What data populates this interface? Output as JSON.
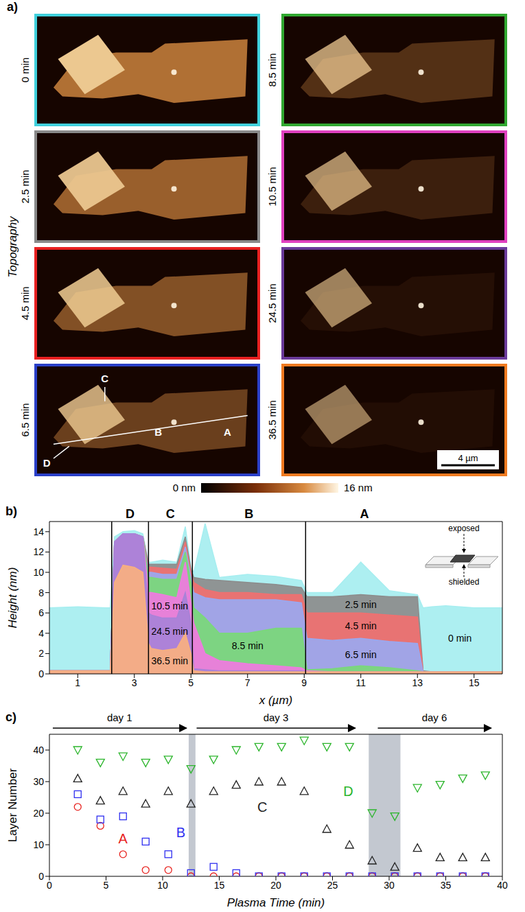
{
  "panel_a": {
    "label": "a)",
    "row_title": "Topography",
    "frames": [
      {
        "time": "0 min",
        "color": "#3fd0dc"
      },
      {
        "time": "2.5 min",
        "color": "#8a8a8a"
      },
      {
        "time": "4.5 min",
        "color": "#e82020"
      },
      {
        "time": "6.5 min",
        "color": "#2a3fc8",
        "markers": [
          "C",
          "D",
          "B",
          "A"
        ]
      },
      {
        "time": "8.5 min",
        "color": "#30a830"
      },
      {
        "time": "10.5 min",
        "color": "#e040c0"
      },
      {
        "time": "24.5 min",
        "color": "#6a3a9a"
      },
      {
        "time": "36.5 min",
        "color": "#f07a20",
        "scale_bar": "4 µm"
      }
    ],
    "colorbar": {
      "ticks": [
        {
          "value": 0,
          "label": "0 nm"
        },
        {
          "value": 16,
          "label": "16 nm"
        }
      ]
    }
  },
  "chart_data": [
    {
      "type": "area",
      "label": "b)",
      "x_label": "x (µm)",
      "y_label": "Height (nm)",
      "xlim": [
        0,
        16
      ],
      "xticks": [
        1,
        3,
        5,
        7,
        9,
        11,
        13,
        15
      ],
      "ylim": [
        0,
        15
      ],
      "yticks": [
        0,
        2,
        4,
        6,
        8,
        10,
        12,
        14
      ],
      "x": [
        0,
        1,
        2,
        2.15,
        2.3,
        2.6,
        3,
        3.3,
        3.5,
        3.6,
        4,
        4.5,
        4.8,
        5,
        5.1,
        5.5,
        6,
        7,
        8,
        8.9,
        9.1,
        10,
        11,
        12,
        13,
        13.2,
        13.5,
        14,
        15,
        16
      ],
      "series": [
        {
          "name": "0 min",
          "color": "#a6eef0",
          "label_x": 14.5,
          "label_y": 3.5,
          "values": [
            6.5,
            6.6,
            6.5,
            6.5,
            13.5,
            14,
            14.1,
            13.8,
            11,
            11,
            11.2,
            11,
            14.5,
            10.5,
            10,
            14.8,
            9.5,
            9.8,
            9.6,
            9.2,
            8,
            8,
            11,
            8.2,
            7.8,
            6.5,
            6.6,
            6.7,
            6.5,
            6.5
          ]
        },
        {
          "name": "2.5 min",
          "color": "#8c8c8c",
          "label_x": 11,
          "label_y": 6.8,
          "values": [
            0.3,
            0.3,
            0.3,
            0.3,
            13,
            13.8,
            13.8,
            13.5,
            10.8,
            10.8,
            10.8,
            10.8,
            13.5,
            10.3,
            9.5,
            9.3,
            9.2,
            9,
            8.8,
            8.5,
            7.6,
            7.6,
            7.8,
            7.6,
            7.6,
            0.3,
            0.2,
            0.2,
            0.2,
            0.2
          ]
        },
        {
          "name": "4.5 min",
          "color": "#f07070",
          "label_x": 11,
          "label_y": 4.7,
          "values": [
            0.3,
            0.3,
            0.3,
            0.3,
            13,
            13.8,
            13.8,
            13.5,
            10.5,
            10.5,
            10.4,
            10.3,
            13,
            10,
            9,
            8.3,
            8,
            8,
            7.8,
            7.8,
            6,
            6,
            6,
            5.8,
            5.6,
            0.2,
            0.2,
            0.2,
            0.2,
            0.2
          ]
        },
        {
          "name": "6.5 min",
          "color": "#9aa8f0",
          "label_x": 11,
          "label_y": 1.9,
          "values": [
            0.3,
            0.3,
            0.3,
            0.3,
            13,
            13.8,
            13.8,
            13.5,
            10,
            10,
            9.8,
            9.8,
            12.5,
            9.5,
            8,
            7.5,
            7.3,
            7.3,
            7.3,
            7,
            3.5,
            3.3,
            3.5,
            3.2,
            3,
            0.2,
            0.2,
            0.2,
            0.2,
            0.2
          ]
        },
        {
          "name": "8.5 min",
          "color": "#7ad87a",
          "label_x": 7,
          "label_y": 2.8,
          "values": [
            0.3,
            0.3,
            0.3,
            0.3,
            13,
            13.8,
            13.8,
            13.5,
            9.5,
            9.5,
            9.3,
            9.3,
            12,
            9,
            6.5,
            5.5,
            4,
            4,
            4.5,
            4.5,
            0.4,
            0.5,
            0.8,
            0.6,
            0.3,
            0.2,
            0.2,
            0.2,
            0.2,
            0.2
          ]
        },
        {
          "name": "10.5 min",
          "color": "#f07ae0",
          "label_x": 4.25,
          "label_y": 6.7,
          "values": [
            0.3,
            0.3,
            0.3,
            0.3,
            13,
            13.8,
            13.8,
            13.5,
            8,
            8,
            7.8,
            7.5,
            11,
            7,
            5,
            2,
            1.3,
            1,
            0.8,
            0.6,
            0.3,
            0.2,
            0.2,
            0.2,
            0.2,
            0.2,
            0.2,
            0.2,
            0.2,
            0.2
          ]
        },
        {
          "name": "24.5 min",
          "color": "#a882d8",
          "label_x": 4.25,
          "label_y": 4.2,
          "values": [
            0.3,
            0.3,
            0.3,
            0.3,
            13,
            13.8,
            13.8,
            13.5,
            6,
            5.8,
            5.5,
            5.5,
            8,
            5,
            0.5,
            0.4,
            0.3,
            0.3,
            0.3,
            0.3,
            0.2,
            0.2,
            0.2,
            0.2,
            0.2,
            0.2,
            0.2,
            0.2,
            0.2,
            0.2
          ]
        },
        {
          "name": "36.5 min",
          "color": "#f8b080",
          "label_x": 4.25,
          "label_y": 1.3,
          "values": [
            0.3,
            0.3,
            0.3,
            0.3,
            9,
            10.7,
            10.5,
            10,
            3,
            2.5,
            2.3,
            2.5,
            4,
            2,
            0.3,
            0.2,
            0.2,
            0.2,
            0.2,
            0.2,
            0.2,
            0.2,
            0.2,
            0.2,
            0.2,
            0.2,
            0.2,
            0.2,
            0.2,
            0.2
          ]
        }
      ],
      "regions": [
        {
          "label": "D",
          "from": 2.2,
          "to": 3.5
        },
        {
          "label": "C",
          "from": 3.5,
          "to": 5.05
        },
        {
          "label": "B",
          "from": 5.05,
          "to": 9.05
        },
        {
          "label": "A",
          "from": 9.05,
          "to": 13.2
        }
      ],
      "inset": {
        "top": "exposed",
        "bottom": "shielded"
      }
    },
    {
      "type": "scatter",
      "label": "c)",
      "x_label": "Plasma Time (min)",
      "y_label": "Layer Number",
      "xlim": [
        0,
        40
      ],
      "xticks": [
        0,
        5,
        10,
        15,
        20,
        25,
        30,
        35,
        40
      ],
      "ylim": [
        0,
        45
      ],
      "yticks": [
        0,
        10,
        20,
        30,
        40
      ],
      "x": [
        2.5,
        4.5,
        6.5,
        8.5,
        10.5,
        12.5,
        14.5,
        16.5,
        18.5,
        20.5,
        22.5,
        24.5,
        26.5,
        28.5,
        30.5,
        32.5,
        34.5,
        36.5,
        38.5
      ],
      "series": [
        {
          "name": "A",
          "color": "#e8231f",
          "marker": "circle",
          "label_x": 6.5,
          "label_y": 12,
          "values": [
            22,
            16,
            7,
            2,
            2,
            0,
            0,
            0,
            0,
            0,
            0,
            0,
            0,
            0,
            0,
            0,
            0,
            0,
            0
          ]
        },
        {
          "name": "B",
          "color": "#2f2ff0",
          "marker": "square",
          "label_x": 11.6,
          "label_y": 14,
          "values": [
            26,
            18,
            19,
            11,
            7,
            1,
            3,
            1,
            0,
            0,
            0,
            0,
            0,
            0,
            0,
            0,
            0,
            0,
            0
          ]
        },
        {
          "name": "C",
          "color": "#222222",
          "marker": "triangle-up",
          "label_x": 18.8,
          "label_y": 22,
          "values": [
            31,
            24,
            27,
            23,
            27,
            23,
            27,
            29,
            30,
            30,
            27,
            15,
            10,
            5,
            3,
            9,
            6,
            6,
            6
          ]
        },
        {
          "name": "D",
          "color": "#2bb52b",
          "marker": "triangle-down",
          "label_x": 26.4,
          "label_y": 27,
          "values": [
            40,
            36,
            38,
            36,
            37,
            34,
            37,
            40,
            41,
            41,
            43,
            41,
            41,
            20,
            19,
            28,
            29,
            31,
            32
          ]
        }
      ],
      "shaded": [
        [
          12.3,
          12.9
        ],
        [
          28.2,
          31
        ]
      ],
      "periods": [
        {
          "label": "day 1",
          "from": 0.3,
          "to": 12.1
        },
        {
          "label": "day 3",
          "from": 13,
          "to": 27
        },
        {
          "label": "day 6",
          "from": 29,
          "to": 39
        }
      ]
    }
  ]
}
